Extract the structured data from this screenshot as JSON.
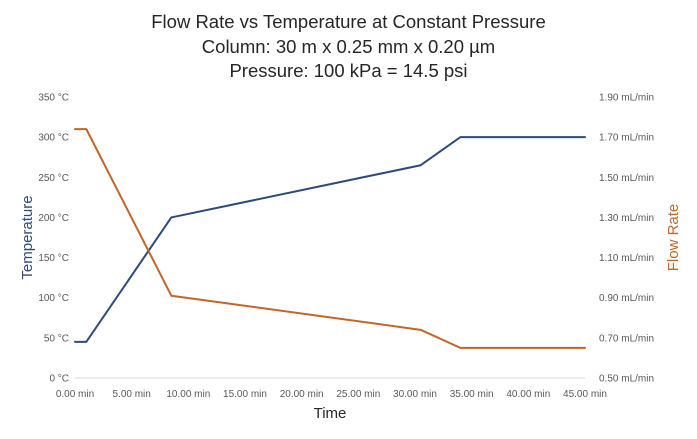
{
  "chart_data": {
    "type": "line",
    "title": "Flow Rate vs Temperature at Constant Pressure",
    "subtitle_lines": [
      "Column:  30 m x 0.25 mm x 0.20 µm",
      "Pressure:  100 kPa = 14.5 psi"
    ],
    "xlabel": "Time",
    "ylabel_left": "Temperature",
    "ylabel_right": "Flow Rate",
    "xlim": [
      0,
      45
    ],
    "ylim_left": [
      0,
      350
    ],
    "ylim_right": [
      0.5,
      1.9
    ],
    "grid": false,
    "x_ticks": [
      {
        "value": 0,
        "label": "0.00 min"
      },
      {
        "value": 5,
        "label": "5.00 min"
      },
      {
        "value": 10,
        "label": "10.00 min"
      },
      {
        "value": 15,
        "label": "15.00 min"
      },
      {
        "value": 20,
        "label": "20.00 min"
      },
      {
        "value": 25,
        "label": "25.00 min"
      },
      {
        "value": 30,
        "label": "30.00 min"
      },
      {
        "value": 35,
        "label": "35.00 min"
      },
      {
        "value": 40,
        "label": "40.00 min"
      },
      {
        "value": 45,
        "label": "45.00 min"
      }
    ],
    "y_left_ticks": [
      {
        "value": 0,
        "label": "0 °C"
      },
      {
        "value": 50,
        "label": "50 °C"
      },
      {
        "value": 100,
        "label": "100 °C"
      },
      {
        "value": 150,
        "label": "150 °C"
      },
      {
        "value": 200,
        "label": "200 °C"
      },
      {
        "value": 250,
        "label": "250 °C"
      },
      {
        "value": 300,
        "label": "300 °C"
      },
      {
        "value": 350,
        "label": "350 °C"
      }
    ],
    "y_right_ticks": [
      {
        "value": 0.5,
        "label": "0.50 mL/min"
      },
      {
        "value": 0.7,
        "label": "0.70 mL/min"
      },
      {
        "value": 0.9,
        "label": "0.90 mL/min"
      },
      {
        "value": 1.1,
        "label": "1.10 mL/min"
      },
      {
        "value": 1.3,
        "label": "1.30 mL/min"
      },
      {
        "value": 1.5,
        "label": "1.50 mL/min"
      },
      {
        "value": 1.7,
        "label": "1.70 mL/min"
      },
      {
        "value": 1.9,
        "label": "1.90 mL/min"
      }
    ],
    "series": [
      {
        "axis": "left",
        "color": "#2e4a7a",
        "x": [
          0,
          1,
          8.5,
          30.5,
          34,
          45
        ],
        "y": [
          45,
          45,
          200,
          265,
          300,
          300
        ]
      },
      {
        "axis": "right",
        "color": "#c0662a",
        "x": [
          0,
          1,
          8.5,
          30.5,
          34,
          45
        ],
        "y": [
          1.74,
          1.74,
          0.91,
          0.74,
          0.65,
          0.65
        ]
      }
    ],
    "colors": {
      "axis_line": "#d9d9d9",
      "tick_text": "#595959",
      "title_text": "#262626",
      "left_label": "#2e4a7a",
      "right_label": "#c0662a",
      "x_label": "#262626"
    }
  }
}
